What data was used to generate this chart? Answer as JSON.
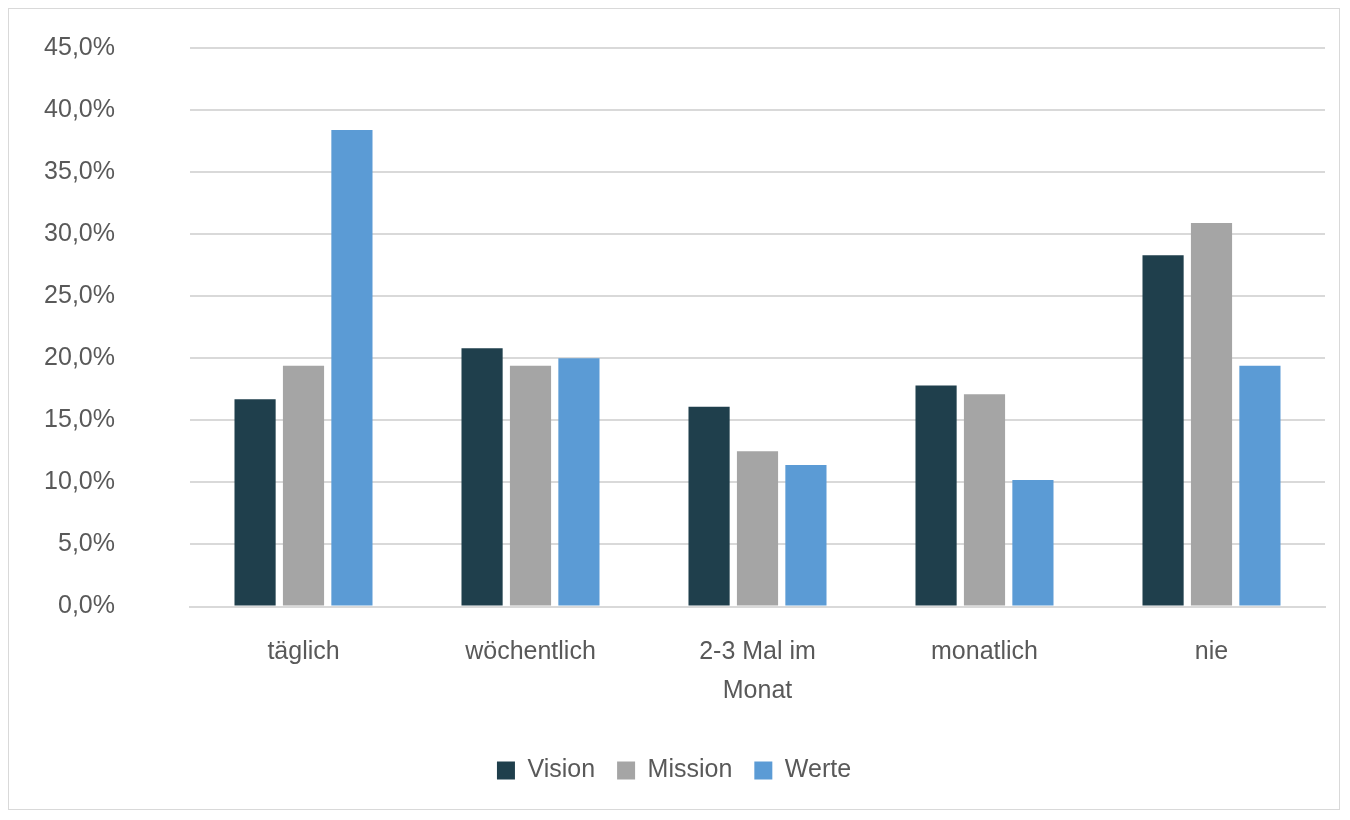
{
  "chart_data": {
    "type": "bar",
    "categories": [
      "täglich",
      "wöchentlich",
      "2-3 Mal im Monat",
      "monatlich",
      "nie"
    ],
    "series": [
      {
        "name": "Vision",
        "color": "#1f3f4c",
        "values": [
          16.7,
          20.8,
          16.1,
          17.8,
          28.3
        ]
      },
      {
        "name": "Mission",
        "color": "#a5a5a5",
        "values": [
          19.4,
          19.4,
          12.5,
          17.1,
          30.9
        ]
      },
      {
        "name": "Werte",
        "color": "#5b9bd5",
        "values": [
          38.4,
          20.0,
          11.4,
          10.2,
          19.4
        ]
      }
    ],
    "ylim": [
      0,
      45
    ],
    "yticks": [
      {
        "value": 0,
        "label": "0,0%"
      },
      {
        "value": 5,
        "label": "5,0%"
      },
      {
        "value": 10,
        "label": "10,0%"
      },
      {
        "value": 15,
        "label": "15,0%"
      },
      {
        "value": 20,
        "label": "20,0%"
      },
      {
        "value": 25,
        "label": "25,0%"
      },
      {
        "value": 30,
        "label": "30,0%"
      },
      {
        "value": 35,
        "label": "35,0%"
      },
      {
        "value": 40,
        "label": "40,0%"
      },
      {
        "value": 45,
        "label": "45,0%"
      }
    ],
    "grid": "y",
    "legend": "bottom"
  }
}
